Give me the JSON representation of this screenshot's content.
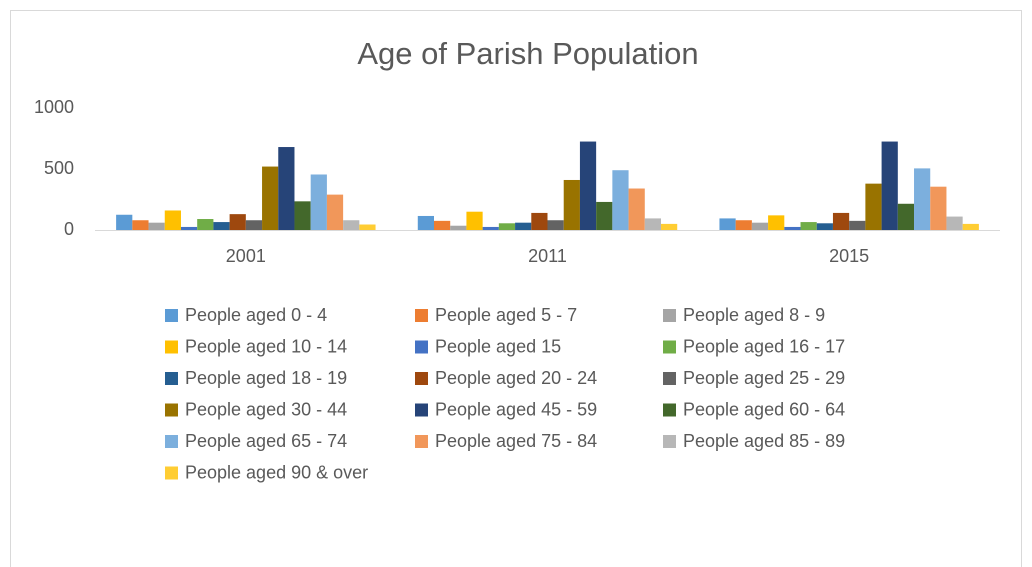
{
  "chart_data": {
    "type": "bar",
    "title": "Age of Parish Population",
    "categories": [
      "2001",
      "2011",
      "2015"
    ],
    "ylim": [
      0,
      1000
    ],
    "yticks": [
      0,
      500,
      1000
    ],
    "grid": false,
    "legend": "bottom",
    "series": [
      {
        "name": "People aged 0 - 4",
        "color": "#5B9BD5",
        "values": [
          125,
          115,
          95
        ]
      },
      {
        "name": "People aged 5 - 7",
        "color": "#ED7D31",
        "values": [
          80,
          75,
          80
        ]
      },
      {
        "name": "People aged 8 - 9",
        "color": "#A5A5A5",
        "values": [
          60,
          35,
          60
        ]
      },
      {
        "name": "People aged 10 - 14",
        "color": "#FFC000",
        "values": [
          160,
          150,
          120
        ]
      },
      {
        "name": "People aged 15",
        "color": "#4472C4",
        "values": [
          25,
          25,
          25
        ]
      },
      {
        "name": "People aged 16 - 17",
        "color": "#70AD47",
        "values": [
          90,
          55,
          65
        ]
      },
      {
        "name": "People aged 18 - 19",
        "color": "#255E91",
        "values": [
          65,
          60,
          55
        ]
      },
      {
        "name": "People aged 20 - 24",
        "color": "#9E480E",
        "values": [
          130,
          140,
          140
        ]
      },
      {
        "name": "People aged 25 - 29",
        "color": "#636363",
        "values": [
          80,
          80,
          75
        ]
      },
      {
        "name": "People aged 30 - 44",
        "color": "#997300",
        "values": [
          520,
          410,
          380
        ]
      },
      {
        "name": "People aged 45 - 59",
        "color": "#264478",
        "values": [
          680,
          725,
          725
        ]
      },
      {
        "name": "People aged 60 - 64",
        "color": "#43682B",
        "values": [
          235,
          230,
          215
        ]
      },
      {
        "name": "People aged 65 - 74",
        "color": "#7CAFDD",
        "values": [
          455,
          490,
          505
        ]
      },
      {
        "name": "People aged 75 - 84",
        "color": "#F1975A",
        "values": [
          290,
          340,
          355
        ]
      },
      {
        "name": "People aged 85 - 89",
        "color": "#B7B7B7",
        "values": [
          80,
          95,
          110
        ]
      },
      {
        "name": "People aged 90 & over",
        "color": "#FFCD33",
        "values": [
          45,
          50,
          50
        ]
      }
    ]
  }
}
